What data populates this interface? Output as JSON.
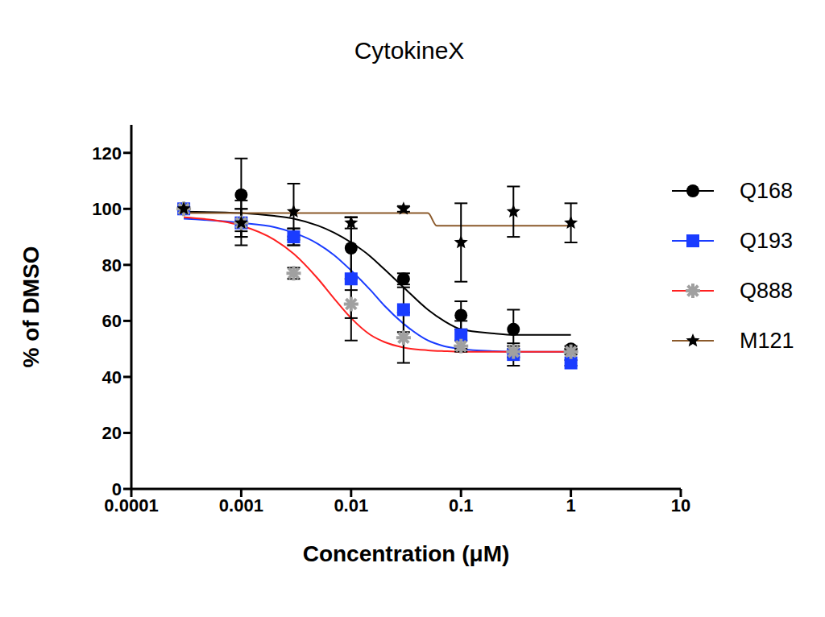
{
  "chart_data": {
    "type": "scatter",
    "title": "CytokineX",
    "x_label": "Concentration (μM)",
    "y_label": "% of DMSO",
    "log": "x",
    "grid": false,
    "legend": "right",
    "xlim": [
      0.0001,
      10
    ],
    "xticks": [
      0.0001,
      0.001,
      0.01,
      0.1,
      1,
      10
    ],
    "ylim": [
      0,
      130
    ],
    "yticks": [
      0,
      20,
      40,
      60,
      80,
      100,
      120
    ],
    "x": [
      0.0003,
      0.001,
      0.003,
      0.01,
      0.03,
      0.1,
      0.3,
      1
    ],
    "series": [
      {
        "name": "Q168",
        "color": "#000000",
        "marker": "circle",
        "values": [
          100,
          105,
          90,
          86,
          75,
          62,
          57,
          50
        ],
        "error": [
          0,
          13,
          3,
          11,
          2,
          5,
          7,
          1
        ],
        "fit": {
          "x": [
            0.0003,
            0.001,
            0.002,
            0.003,
            0.005,
            0.007,
            0.01,
            0.015,
            0.02,
            0.03,
            0.05,
            0.07,
            0.1,
            0.2,
            0.3,
            1
          ],
          "values": [
            99,
            98.5,
            97.5,
            96.5,
            94,
            91.5,
            88,
            83,
            78.5,
            72,
            64,
            60,
            57,
            55.5,
            55,
            55
          ],
          "color": "#000000"
        }
      },
      {
        "name": "Q193",
        "color": "#1a3cff",
        "marker": "square",
        "values": [
          100,
          95,
          90,
          75,
          64,
          55,
          48,
          45
        ],
        "error": [
          0,
          8,
          3,
          22,
          8,
          5,
          4,
          1
        ],
        "fit": {
          "x": [
            0.0003,
            0.001,
            0.002,
            0.003,
            0.005,
            0.007,
            0.01,
            0.015,
            0.02,
            0.03,
            0.05,
            0.07,
            0.1,
            0.2,
            0.3,
            1
          ],
          "values": [
            96.5,
            95,
            93.5,
            91.5,
            87.5,
            83.5,
            78,
            71,
            65.5,
            59,
            53,
            51,
            50,
            49.2,
            49,
            49
          ],
          "color": "#1a3cff"
        }
      },
      {
        "name": "Q888",
        "color": "#a0a0a0",
        "marker": "asterisk",
        "values": [
          100,
          95,
          77,
          66,
          54,
          51,
          49,
          49
        ],
        "error": [
          0,
          5,
          2,
          5,
          9,
          2,
          2,
          1
        ],
        "fit": {
          "x": [
            0.0003,
            0.001,
            0.002,
            0.003,
            0.005,
            0.007,
            0.01,
            0.015,
            0.02,
            0.03,
            0.05,
            0.07,
            0.1,
            0.2,
            0.3,
            1
          ],
          "values": [
            97,
            94,
            89,
            84,
            75,
            68,
            61,
            55,
            52.5,
            50.5,
            49.5,
            49.2,
            49,
            49,
            49,
            49
          ],
          "color": "#ff2020"
        }
      },
      {
        "name": "M121",
        "color": "#000000",
        "marker": "star",
        "values": [
          100,
          95,
          99,
          95,
          100,
          88,
          99,
          95
        ],
        "error": [
          0,
          5,
          10,
          2,
          1,
          14,
          9,
          7
        ],
        "fit": {
          "x": [
            0.0003,
            0.05,
            0.06,
            1
          ],
          "values": [
            98.5,
            98.5,
            94,
            94
          ],
          "color": "#8b5a2b"
        }
      }
    ]
  }
}
